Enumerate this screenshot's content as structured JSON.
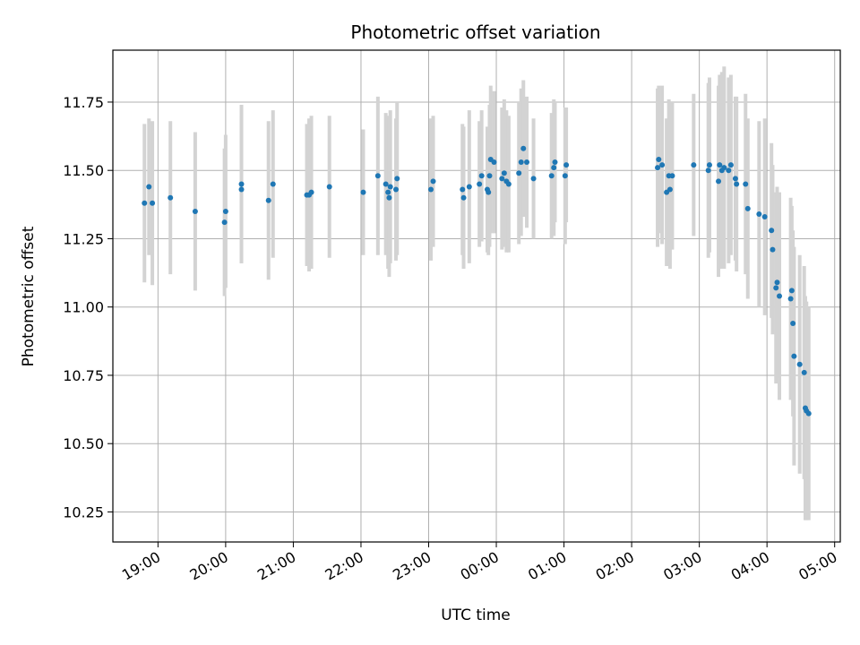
{
  "chart_data": {
    "type": "scatter",
    "title": "Photometric offset variation",
    "xlabel": "UTC time",
    "ylabel": "Photometric offset",
    "grid": true,
    "x_format": "HH:MM",
    "xlim": [
      "18:20",
      "05:05"
    ],
    "ylim": [
      10.14,
      11.94
    ],
    "x_ticks": [
      "19:00",
      "20:00",
      "21:00",
      "22:00",
      "23:00",
      "00:00",
      "01:00",
      "02:00",
      "03:00",
      "04:00",
      "05:00"
    ],
    "y_ticks": [
      10.25,
      10.5,
      10.75,
      11.0,
      11.25,
      11.5,
      11.75
    ],
    "y_tick_labels": [
      "10.25",
      "10.50",
      "10.75",
      "11.00",
      "11.25",
      "11.50",
      "11.75"
    ],
    "colors": {
      "point": "#1f77b4",
      "errorbar": "#d3d3d3",
      "grid": "#b0b0b0"
    },
    "series": [
      {
        "x": [
          "18:48",
          "18:52",
          "18:55",
          "19:11",
          "19:33",
          "19:59",
          "20:00",
          "20:14",
          "20:14",
          "20:38",
          "20:42",
          "21:12",
          "21:14",
          "21:16",
          "21:32",
          "22:02",
          "22:15",
          "22:22",
          "22:24",
          "22:25",
          "22:26",
          "22:31",
          "22:32",
          "23:02",
          "23:04",
          "23:30",
          "23:31",
          "23:36",
          "23:45",
          "23:47",
          "23:52",
          "23:53",
          "23:54",
          "23:55",
          "23:58",
          "00:05",
          "00:07",
          "00:09",
          "00:11",
          "00:20",
          "00:22",
          "00:24",
          "00:27",
          "00:33",
          "00:49",
          "00:51",
          "00:52",
          "01:01",
          "01:02",
          "02:23",
          "02:24",
          "02:27",
          "02:31",
          "02:33",
          "02:34",
          "02:36",
          "02:55",
          "03:08",
          "03:09",
          "03:17",
          "03:18",
          "03:20",
          "03:22",
          "03:26",
          "03:28",
          "03:32",
          "03:33",
          "03:41",
          "03:43",
          "03:53",
          "03:58",
          "04:04",
          "04:05",
          "04:08",
          "04:09",
          "04:11",
          "04:21",
          "04:22",
          "04:23",
          "04:24",
          "04:29",
          "04:33",
          "04:34",
          "04:35",
          "04:37"
        ],
        "y": [
          11.38,
          11.44,
          11.38,
          11.4,
          11.35,
          11.31,
          11.35,
          11.43,
          11.45,
          11.39,
          11.45,
          11.41,
          11.41,
          11.42,
          11.44,
          11.42,
          11.48,
          11.45,
          11.42,
          11.4,
          11.44,
          11.43,
          11.47,
          11.43,
          11.46,
          11.43,
          11.4,
          11.44,
          11.45,
          11.48,
          11.43,
          11.42,
          11.48,
          11.54,
          11.53,
          11.47,
          11.49,
          11.46,
          11.45,
          11.49,
          11.53,
          11.58,
          11.53,
          11.47,
          11.48,
          11.51,
          11.53,
          11.48,
          11.52,
          11.51,
          11.54,
          11.52,
          11.42,
          11.48,
          11.43,
          11.48,
          11.52,
          11.5,
          11.52,
          11.46,
          11.52,
          11.5,
          11.51,
          11.5,
          11.52,
          11.47,
          11.45,
          11.45,
          11.36,
          11.34,
          11.33,
          11.28,
          11.21,
          11.07,
          11.09,
          11.04,
          11.03,
          11.06,
          10.94,
          10.82,
          10.79,
          10.76,
          10.63,
          10.62,
          10.61
        ],
        "err": [
          0.29,
          0.25,
          0.3,
          0.28,
          0.29,
          0.27,
          0.28,
          0.27,
          0.29,
          0.29,
          0.27,
          0.26,
          0.28,
          0.28,
          0.26,
          0.23,
          0.29,
          0.26,
          0.28,
          0.29,
          0.28,
          0.26,
          0.28,
          0.26,
          0.24,
          0.24,
          0.26,
          0.28,
          0.23,
          0.24,
          0.23,
          0.23,
          0.26,
          0.27,
          0.26,
          0.26,
          0.27,
          0.26,
          0.25,
          0.26,
          0.27,
          0.25,
          0.24,
          0.22,
          0.23,
          0.25,
          0.22,
          0.25,
          0.21,
          0.29,
          0.27,
          0.29,
          0.27,
          0.28,
          0.29,
          0.27,
          0.26,
          0.32,
          0.32,
          0.35,
          0.33,
          0.36,
          0.37,
          0.34,
          0.33,
          0.3,
          0.32,
          0.33,
          0.33,
          0.34,
          0.36,
          0.32,
          0.31,
          0.35,
          0.35,
          0.38,
          0.37,
          0.31,
          0.34,
          0.4,
          0.4,
          0.39,
          0.41,
          0.4,
          0.39
        ]
      }
    ]
  }
}
